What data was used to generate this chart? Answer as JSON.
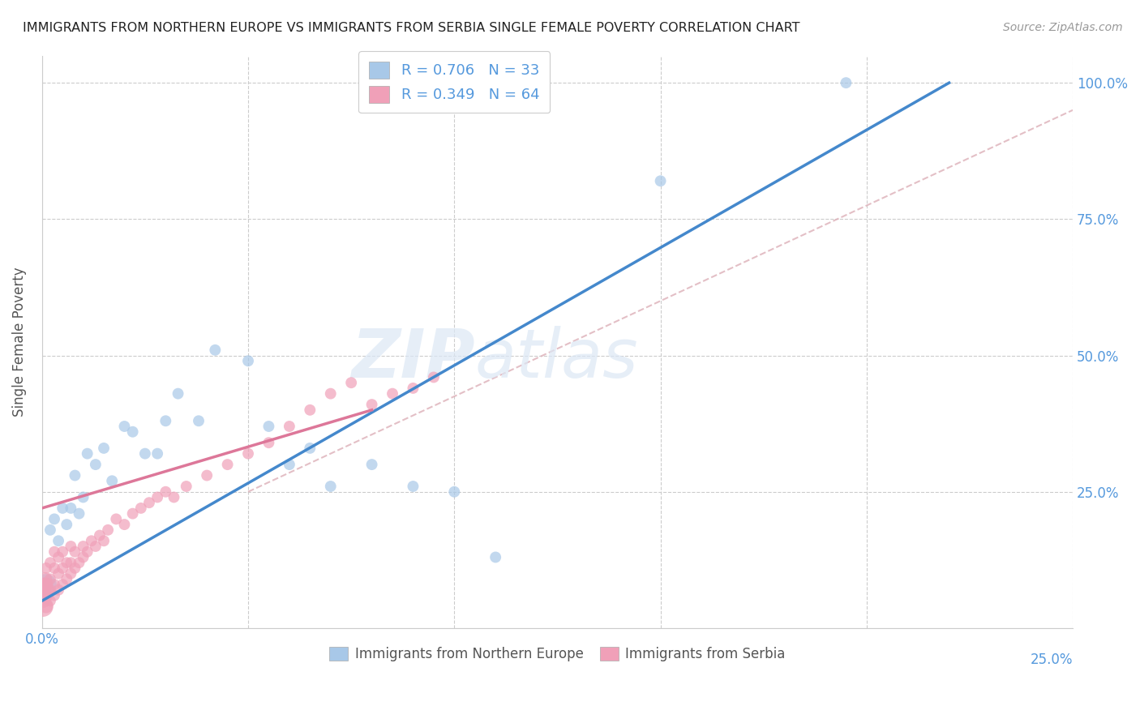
{
  "title": "IMMIGRANTS FROM NORTHERN EUROPE VS IMMIGRANTS FROM SERBIA SINGLE FEMALE POVERTY CORRELATION CHART",
  "source": "Source: ZipAtlas.com",
  "ylabel": "Single Female Poverty",
  "yticks": [
    0.0,
    0.25,
    0.5,
    0.75,
    1.0
  ],
  "ytick_labels": [
    "",
    "25.0%",
    "50.0%",
    "75.0%",
    "100.0%"
  ],
  "xlim": [
    0.0,
    0.25
  ],
  "ylim": [
    0.0,
    1.05
  ],
  "watermark": "ZIPatlas",
  "legend_blue_r": "R = 0.706",
  "legend_blue_n": "N = 33",
  "legend_pink_r": "R = 0.349",
  "legend_pink_n": "N = 64",
  "blue_color": "#a8c8e8",
  "pink_color": "#f0a0b8",
  "blue_line_color": "#4488cc",
  "pink_line_color": "#dd7799",
  "pink_dashed_color": "#ddb0b8",
  "axis_label_color": "#5599dd",
  "grid_color": "#cccccc",
  "blue_scatter_x": [
    0.001,
    0.002,
    0.003,
    0.004,
    0.005,
    0.006,
    0.007,
    0.008,
    0.009,
    0.01,
    0.011,
    0.013,
    0.015,
    0.017,
    0.02,
    0.022,
    0.025,
    0.028,
    0.03,
    0.033,
    0.038,
    0.042,
    0.05,
    0.055,
    0.06,
    0.065,
    0.07,
    0.08,
    0.09,
    0.1,
    0.11,
    0.15,
    0.195
  ],
  "blue_scatter_y": [
    0.08,
    0.18,
    0.2,
    0.16,
    0.22,
    0.19,
    0.22,
    0.28,
    0.21,
    0.24,
    0.32,
    0.3,
    0.33,
    0.27,
    0.37,
    0.36,
    0.32,
    0.32,
    0.38,
    0.43,
    0.38,
    0.51,
    0.49,
    0.37,
    0.3,
    0.33,
    0.26,
    0.3,
    0.26,
    0.25,
    0.13,
    0.82,
    1.0
  ],
  "blue_scatter_sizes": [
    350,
    100,
    100,
    100,
    100,
    100,
    100,
    100,
    100,
    100,
    100,
    100,
    100,
    100,
    100,
    100,
    100,
    100,
    100,
    100,
    100,
    100,
    100,
    100,
    100,
    100,
    100,
    100,
    100,
    100,
    100,
    100,
    100
  ],
  "pink_scatter_x": [
    0.0002,
    0.0003,
    0.0004,
    0.0005,
    0.0006,
    0.0007,
    0.0008,
    0.0009,
    0.001,
    0.001,
    0.001,
    0.001,
    0.0015,
    0.002,
    0.002,
    0.002,
    0.002,
    0.003,
    0.003,
    0.003,
    0.003,
    0.004,
    0.004,
    0.004,
    0.005,
    0.005,
    0.005,
    0.006,
    0.006,
    0.007,
    0.007,
    0.007,
    0.008,
    0.008,
    0.009,
    0.01,
    0.01,
    0.011,
    0.012,
    0.013,
    0.014,
    0.015,
    0.016,
    0.018,
    0.02,
    0.022,
    0.024,
    0.026,
    0.028,
    0.03,
    0.032,
    0.035,
    0.04,
    0.045,
    0.05,
    0.055,
    0.06,
    0.065,
    0.07,
    0.075,
    0.08,
    0.085,
    0.09,
    0.095
  ],
  "pink_scatter_y": [
    0.04,
    0.06,
    0.05,
    0.08,
    0.07,
    0.06,
    0.09,
    0.08,
    0.04,
    0.06,
    0.08,
    0.11,
    0.07,
    0.05,
    0.07,
    0.09,
    0.12,
    0.06,
    0.08,
    0.11,
    0.14,
    0.07,
    0.1,
    0.13,
    0.08,
    0.11,
    0.14,
    0.09,
    0.12,
    0.1,
    0.12,
    0.15,
    0.11,
    0.14,
    0.12,
    0.13,
    0.15,
    0.14,
    0.16,
    0.15,
    0.17,
    0.16,
    0.18,
    0.2,
    0.19,
    0.21,
    0.22,
    0.23,
    0.24,
    0.25,
    0.24,
    0.26,
    0.28,
    0.3,
    0.32,
    0.34,
    0.37,
    0.4,
    0.43,
    0.45,
    0.41,
    0.43,
    0.44,
    0.46
  ],
  "pink_scatter_sizes": [
    350,
    200,
    150,
    150,
    150,
    150,
    150,
    150,
    150,
    150,
    150,
    100,
    100,
    100,
    100,
    100,
    100,
    100,
    100,
    100,
    100,
    100,
    100,
    100,
    100,
    100,
    100,
    100,
    100,
    100,
    100,
    100,
    100,
    100,
    100,
    100,
    100,
    100,
    100,
    100,
    100,
    100,
    100,
    100,
    100,
    100,
    100,
    100,
    100,
    100,
    100,
    100,
    100,
    100,
    100,
    100,
    100,
    100,
    100,
    100,
    100,
    100,
    100,
    100
  ],
  "blue_line_x0": 0.0,
  "blue_line_y0": 0.05,
  "blue_line_x1": 0.22,
  "blue_line_y1": 1.0,
  "pink_solid_line_x0": 0.0,
  "pink_solid_line_y0": 0.22,
  "pink_solid_line_x1": 0.08,
  "pink_solid_line_y1": 0.4,
  "pink_dashed_line_x0": 0.05,
  "pink_dashed_line_y0": 0.25,
  "pink_dashed_line_x1": 0.25,
  "pink_dashed_line_y1": 0.95
}
